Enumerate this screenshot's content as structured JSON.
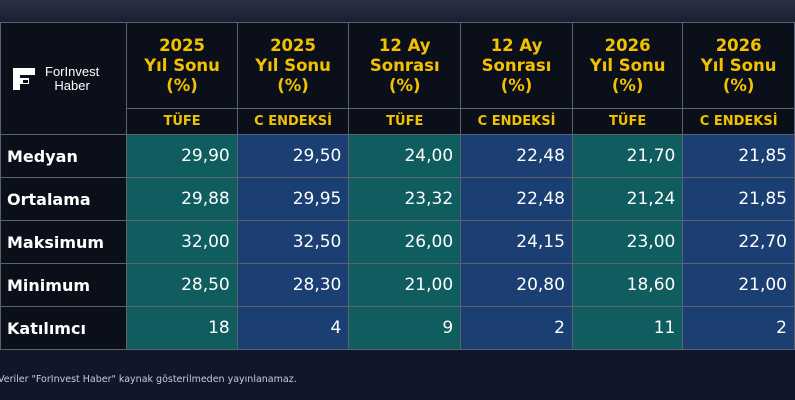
{
  "brand": {
    "line1": "ForInvest",
    "line2": "Haber"
  },
  "columns": [
    {
      "title": [
        "2025",
        "Yıl Sonu",
        "(%)"
      ],
      "sub": "TÜFE"
    },
    {
      "title": [
        "2025",
        "Yıl Sonu",
        "(%)"
      ],
      "sub": "C ENDEKSİ"
    },
    {
      "title": [
        "12 Ay",
        "Sonrası",
        "(%)"
      ],
      "sub": "TÜFE"
    },
    {
      "title": [
        "12 Ay",
        "Sonrası",
        "(%)"
      ],
      "sub": "C ENDEKSİ"
    },
    {
      "title": [
        "2026",
        "Yıl Sonu",
        "(%)"
      ],
      "sub": "TÜFE"
    },
    {
      "title": [
        "2026",
        "Yıl Sonu",
        "(%)"
      ],
      "sub": "C ENDEKSİ"
    }
  ],
  "rows": [
    {
      "label": "Medyan",
      "values": [
        "29,90",
        "29,50",
        "24,00",
        "22,48",
        "21,70",
        "21,85"
      ]
    },
    {
      "label": "Ortalama",
      "values": [
        "29,88",
        "29,95",
        "23,32",
        "22,48",
        "21,24",
        "21,85"
      ]
    },
    {
      "label": "Maksimum",
      "values": [
        "32,00",
        "32,50",
        "26,00",
        "24,15",
        "23,00",
        "22,70"
      ]
    },
    {
      "label": "Minimum",
      "values": [
        "28,50",
        "28,30",
        "21,00",
        "20,80",
        "18,60",
        "21,00"
      ]
    },
    {
      "label": "Katılımcı",
      "values": [
        "18",
        "4",
        "9",
        "2",
        "11",
        "2"
      ]
    }
  ],
  "footer": "Veriler \"ForInvest Haber\" kaynak gösterilmeden yayınlanamaz.",
  "colors": {
    "accent": "#f2c100",
    "teal": "#0f5d5f",
    "blue": "#1b3f73",
    "background": "#0b0f19"
  }
}
